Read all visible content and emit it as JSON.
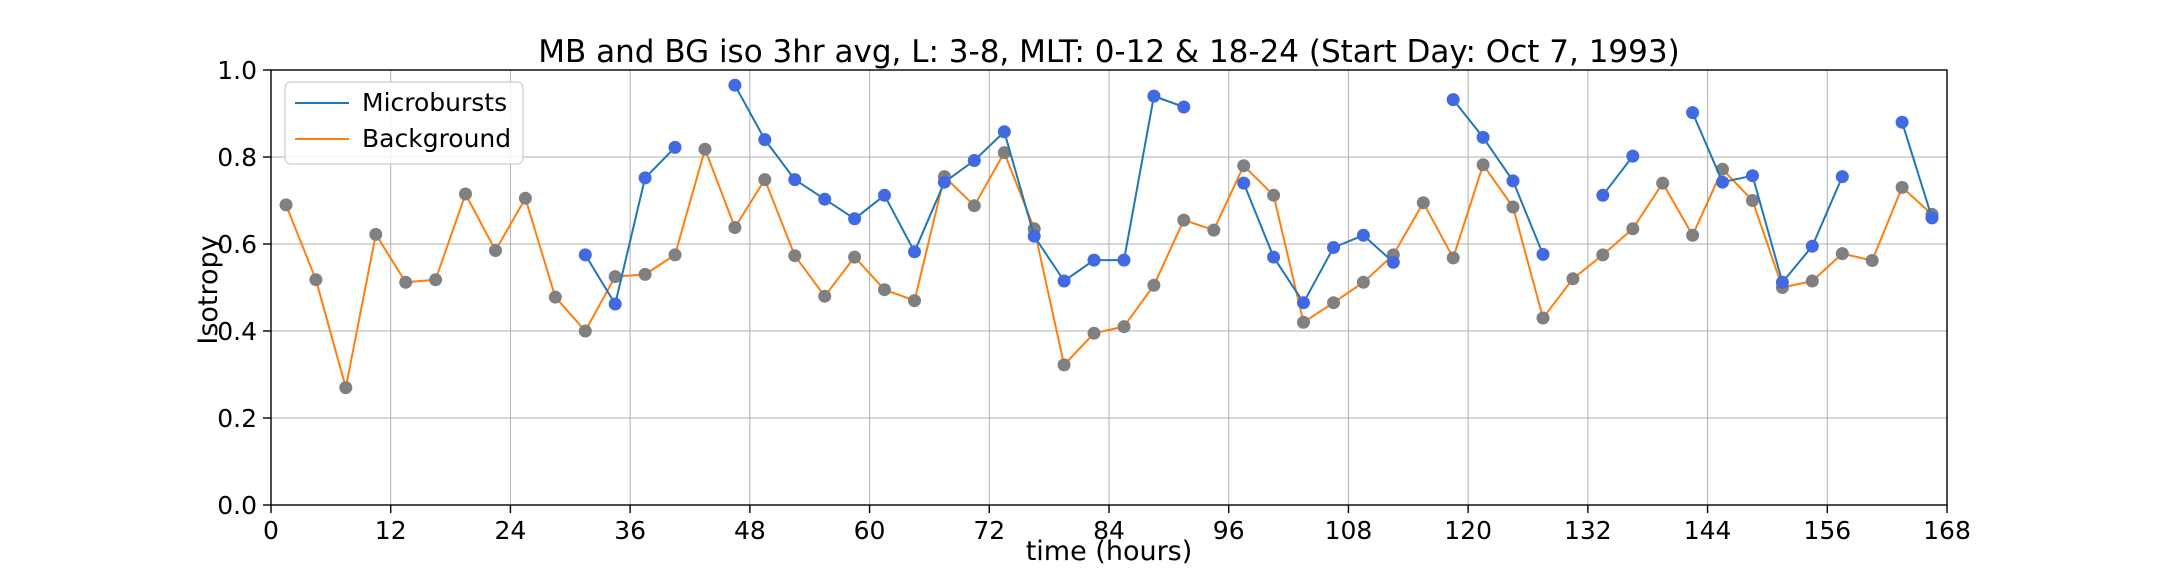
{
  "chart_data": {
    "type": "line",
    "title": "MB and BG iso 3hr avg, L: 3-8, MLT: 0-12 & 18-24 (Start Day: Oct 7, 1993)",
    "xlabel": "time (hours)",
    "ylabel": "Isotropy",
    "xlim": [
      0,
      168
    ],
    "ylim": [
      0,
      1.0
    ],
    "xticks": [
      0,
      12,
      24,
      36,
      48,
      60,
      72,
      84,
      96,
      108,
      120,
      132,
      144,
      156,
      168
    ],
    "yticks": [
      0.0,
      0.2,
      0.4,
      0.6,
      0.8,
      1.0
    ],
    "xtick_labels": [
      "0",
      "12",
      "24",
      "36",
      "48",
      "60",
      "72",
      "84",
      "96",
      "108",
      "120",
      "132",
      "144",
      "156",
      "168"
    ],
    "ytick_labels": [
      "0.0",
      "0.2",
      "0.4",
      "0.6",
      "0.8",
      "1.0"
    ],
    "grid": true,
    "legend_position": "top-left",
    "series": [
      {
        "name": "Microbursts",
        "color": "#1f77b4",
        "marker_color": "#4169e1",
        "points": [
          [
            31.5,
            0.575
          ],
          [
            34.5,
            0.462
          ],
          [
            37.5,
            0.752
          ],
          [
            40.5,
            0.822
          ],
          [
            46.5,
            0.965
          ],
          [
            49.5,
            0.84
          ],
          [
            52.5,
            0.748
          ],
          [
            55.5,
            0.703
          ],
          [
            58.5,
            0.658
          ],
          [
            61.5,
            0.712
          ],
          [
            64.5,
            0.582
          ],
          [
            67.5,
            0.742
          ],
          [
            70.5,
            0.792
          ],
          [
            73.5,
            0.858
          ],
          [
            76.5,
            0.618
          ],
          [
            79.5,
            0.515
          ],
          [
            82.5,
            0.563
          ],
          [
            85.5,
            0.563
          ],
          [
            88.5,
            0.94
          ],
          [
            91.5,
            0.915
          ],
          [
            97.5,
            0.74
          ],
          [
            100.5,
            0.57
          ],
          [
            103.5,
            0.465
          ],
          [
            106.5,
            0.592
          ],
          [
            109.5,
            0.62
          ],
          [
            112.5,
            0.558
          ],
          [
            118.5,
            0.932
          ],
          [
            121.5,
            0.845
          ],
          [
            124.5,
            0.745
          ],
          [
            127.5,
            0.576
          ],
          [
            133.5,
            0.712
          ],
          [
            136.5,
            0.802
          ],
          [
            142.5,
            0.902
          ],
          [
            145.5,
            0.742
          ],
          [
            148.5,
            0.757
          ],
          [
            151.5,
            0.512
          ],
          [
            154.5,
            0.595
          ],
          [
            157.5,
            0.755
          ],
          [
            163.5,
            0.88
          ],
          [
            166.5,
            0.66
          ]
        ],
        "segments": [
          [
            0,
            3
          ],
          [
            4,
            19
          ],
          [
            20,
            25
          ],
          [
            26,
            29
          ],
          [
            30,
            31
          ],
          [
            32,
            37
          ],
          [
            38,
            39
          ]
        ]
      },
      {
        "name": "Background",
        "color": "#ff7f0e",
        "marker_color": "#808080",
        "points": [
          [
            1.5,
            0.69
          ],
          [
            4.5,
            0.518
          ],
          [
            7.5,
            0.27
          ],
          [
            10.5,
            0.622
          ],
          [
            13.5,
            0.512
          ],
          [
            16.5,
            0.518
          ],
          [
            19.5,
            0.715
          ],
          [
            22.5,
            0.585
          ],
          [
            25.5,
            0.705
          ],
          [
            28.5,
            0.478
          ],
          [
            31.5,
            0.4
          ],
          [
            34.5,
            0.525
          ],
          [
            37.5,
            0.53
          ],
          [
            40.5,
            0.575
          ],
          [
            43.5,
            0.818
          ],
          [
            46.5,
            0.638
          ],
          [
            49.5,
            0.748
          ],
          [
            52.5,
            0.573
          ],
          [
            55.5,
            0.48
          ],
          [
            58.5,
            0.57
          ],
          [
            61.5,
            0.495
          ],
          [
            64.5,
            0.47
          ],
          [
            67.5,
            0.755
          ],
          [
            70.5,
            0.688
          ],
          [
            73.5,
            0.81
          ],
          [
            76.5,
            0.635
          ],
          [
            79.5,
            0.322
          ],
          [
            82.5,
            0.395
          ],
          [
            85.5,
            0.41
          ],
          [
            88.5,
            0.505
          ],
          [
            91.5,
            0.655
          ],
          [
            94.5,
            0.632
          ],
          [
            97.5,
            0.78
          ],
          [
            100.5,
            0.712
          ],
          [
            103.5,
            0.42
          ],
          [
            106.5,
            0.465
          ],
          [
            109.5,
            0.512
          ],
          [
            112.5,
            0.575
          ],
          [
            115.5,
            0.695
          ],
          [
            118.5,
            0.568
          ],
          [
            121.5,
            0.782
          ],
          [
            124.5,
            0.685
          ],
          [
            127.5,
            0.43
          ],
          [
            130.5,
            0.52
          ],
          [
            133.5,
            0.575
          ],
          [
            136.5,
            0.635
          ],
          [
            139.5,
            0.74
          ],
          [
            142.5,
            0.62
          ],
          [
            145.5,
            0.772
          ],
          [
            148.5,
            0.7
          ],
          [
            151.5,
            0.5
          ],
          [
            154.5,
            0.515
          ],
          [
            157.5,
            0.578
          ],
          [
            160.5,
            0.562
          ],
          [
            163.5,
            0.73
          ],
          [
            166.5,
            0.668
          ]
        ],
        "segments": [
          [
            0,
            55
          ]
        ]
      }
    ]
  }
}
